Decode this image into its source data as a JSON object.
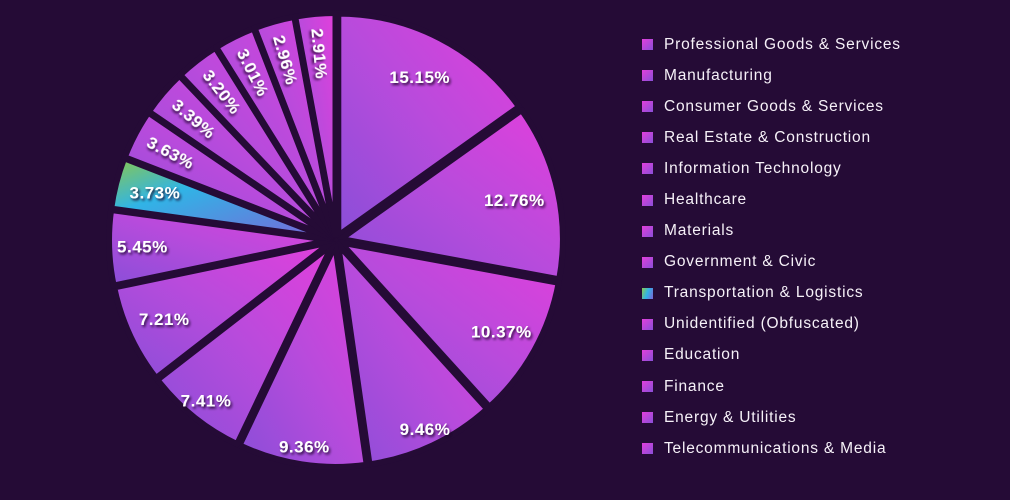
{
  "colors": {
    "background": "#250b36",
    "slice_gradient": [
      "#8a4ed8",
      "#b84bdc",
      "#e23fdc"
    ],
    "accent_slice_gradient": [
      "#8cc84b",
      "#30b4e6",
      "#7b64d8"
    ],
    "label_text": "#ffffff",
    "legend_text": "#f6f1f8"
  },
  "chart_data": {
    "type": "pie",
    "style": "exploded",
    "start_angle_deg": 0,
    "direction": "clockwise",
    "legend_position": "right",
    "slices": [
      {
        "value": 15.15,
        "label": "15.15%",
        "category": "Professional Goods & Services"
      },
      {
        "value": 12.76,
        "label": "12.76%",
        "category": "Manufacturing"
      },
      {
        "value": 10.37,
        "label": "10.37%",
        "category": "Consumer Goods & Services"
      },
      {
        "value": 9.46,
        "label": "9.46%",
        "category": "Real Estate & Construction"
      },
      {
        "value": 9.36,
        "label": "9.36%",
        "category": "Information Technology"
      },
      {
        "value": 7.41,
        "label": "7.41%",
        "category": "Healthcare"
      },
      {
        "value": 7.21,
        "label": "7.21%",
        "category": "Materials"
      },
      {
        "value": 5.45,
        "label": "5.45%",
        "category": "Government & Civic"
      },
      {
        "value": 3.73,
        "label": "3.73%",
        "category": "Transportation & Logistics",
        "accent": true
      },
      {
        "value": 3.63,
        "label": "3.63%",
        "category": "Unidentified (Obfuscated)"
      },
      {
        "value": 3.39,
        "label": "3.39%",
        "category": "Education"
      },
      {
        "value": 3.2,
        "label": "3.20%",
        "category": "Finance"
      },
      {
        "value": 3.01,
        "label": "3.01%",
        "category": "Energy & Utilities"
      },
      {
        "value": 2.96,
        "label": "2.96%",
        "category": "Telecommunications & Media"
      },
      {
        "value": 2.91,
        "label": "2.91%",
        "category": null
      }
    ],
    "legend_items": [
      "Professional Goods & Services",
      "Manufacturing",
      "Consumer Goods & Services",
      "Real Estate & Construction",
      "Information Technology",
      "Healthcare",
      "Materials",
      "Government & Civic",
      "Transportation & Logistics",
      "Unidentified (Obfuscated)",
      "Education",
      "Finance",
      "Energy & Utilities",
      "Telecommunications & Media"
    ],
    "accent_legend_index": 8
  }
}
